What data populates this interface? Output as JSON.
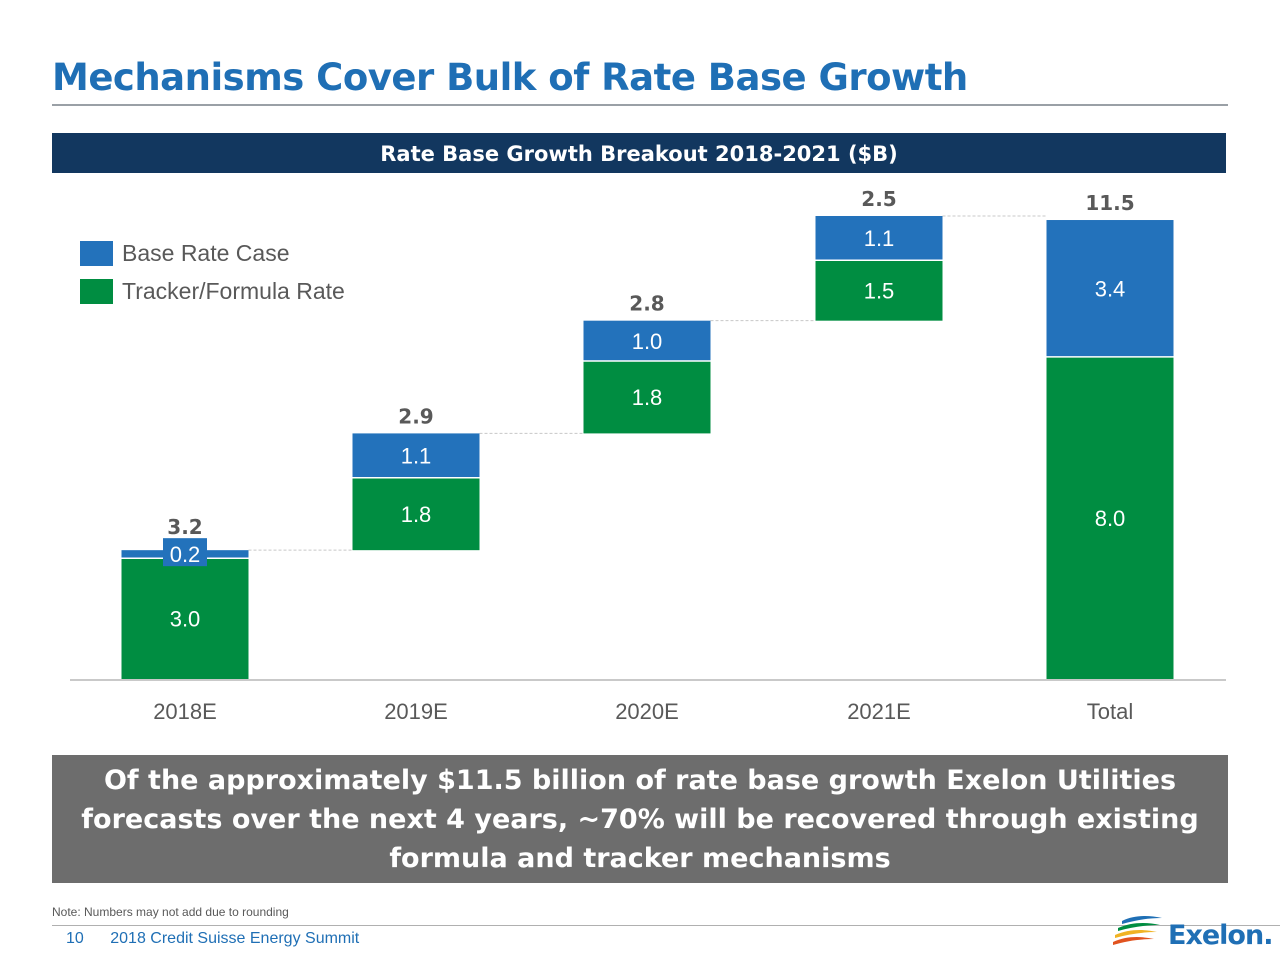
{
  "title": "Mechanisms Cover Bulk of Rate Base Growth",
  "colors": {
    "base_rate": "#2372bb",
    "tracker": "#008d41",
    "title": "#1f6fb5",
    "header_bg": "#12375f"
  },
  "legend": [
    {
      "label": "Base Rate Case",
      "color": "#2372bb"
    },
    {
      "label": "Tracker/Formula Rate",
      "color": "#008d41"
    }
  ],
  "callout": "Of the approximately $11.5 billion of rate base growth Exelon Utilities forecasts over the next 4 years, ~70% will be recovered through existing formula and tracker mechanisms",
  "note": "Note: Numbers may not add due to rounding",
  "footer": {
    "page_number": "10",
    "event": "2018 Credit Suisse Energy Summit"
  },
  "logo_text": "Exelon.",
  "chart_data": {
    "type": "bar",
    "subtype": "waterfall-stacked",
    "title": "Rate Base Growth Breakout 2018-2021 ($B)",
    "categories": [
      "2018E",
      "2019E",
      "2020E",
      "2021E",
      "Total"
    ],
    "series": [
      {
        "name": "Tracker/Formula Rate",
        "values": [
          3.0,
          1.8,
          1.8,
          1.5,
          8.0
        ],
        "labels": [
          "3.0",
          "1.8",
          "1.8",
          "1.5",
          "8.0"
        ]
      },
      {
        "name": "Base Rate Case",
        "values": [
          0.2,
          1.1,
          1.0,
          1.1,
          3.4
        ],
        "labels": [
          "0.2",
          "1.1",
          "1.0",
          "1.1",
          "3.4"
        ]
      }
    ],
    "totals": [
      3.2,
      2.9,
      2.8,
      2.5,
      11.5
    ],
    "total_labels": [
      "3.2",
      "2.9",
      "2.8",
      "2.5",
      "11.5"
    ],
    "ylim": [
      0,
      11.5
    ],
    "xlabel": "",
    "ylabel": "",
    "grid": false,
    "legend_position": "top-left"
  }
}
